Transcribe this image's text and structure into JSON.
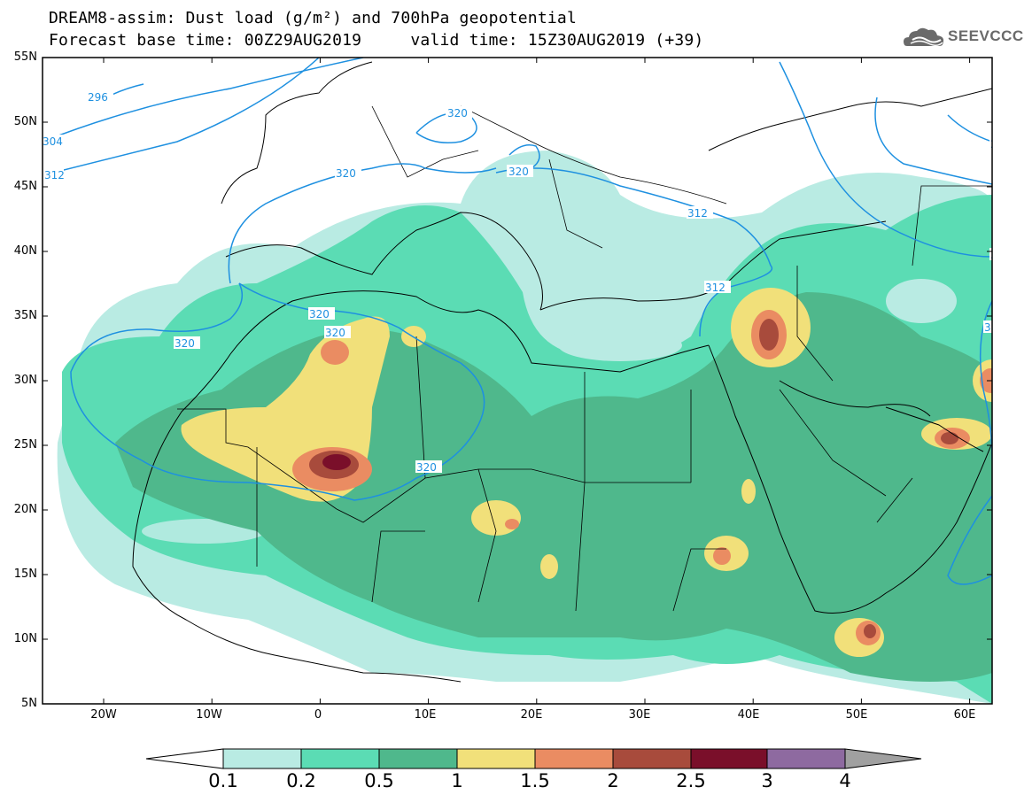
{
  "header": {
    "title_line1": "DREAM8-assim: Dust load (g/m²) and 700hPa geopotential",
    "title_line2": "Forecast base time: 00Z29AUG2019     valid time: 15Z30AUG2019 (+39)",
    "logo_text": "SEEVCCC"
  },
  "map": {
    "lat_labels": [
      "55N",
      "50N",
      "45N",
      "40N",
      "35N",
      "30N",
      "25N",
      "20N",
      "15N",
      "10N",
      "5N"
    ],
    "lon_labels": [
      "20W",
      "10W",
      "0",
      "10E",
      "20E",
      "30E",
      "40E",
      "50E",
      "60E"
    ],
    "lat_range": [
      5,
      55
    ],
    "lon_range": [
      -25,
      65
    ],
    "geopotential_labels": [
      "296",
      "304",
      "312",
      "320",
      "320",
      "320",
      "320",
      "320",
      "320",
      "320",
      "312",
      "312",
      "312",
      "312",
      "296",
      "304"
    ]
  },
  "colorbar": {
    "labels": [
      "0.1",
      "0.2",
      "0.5",
      "1",
      "1.5",
      "2",
      "2.5",
      "3",
      "4"
    ],
    "colors": {
      "below": "#ffffff",
      "c1": "#b9ebe3",
      "c2": "#5bdcb4",
      "c3": "#4fb88c",
      "c4": "#f1e07a",
      "c5": "#ea8c62",
      "c6": "#a84b3c",
      "c7": "#7a0f2a",
      "c8": "#8e6aa0",
      "above": "#a0a0a0"
    }
  }
}
